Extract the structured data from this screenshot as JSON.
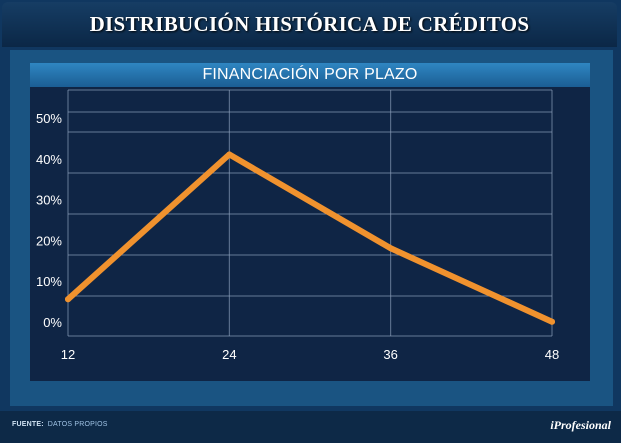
{
  "title": "DISTRIBUCIÓN HISTÓRICA DE CRÉDITOS",
  "chart_data": {
    "type": "line",
    "title": "FINANCIACIÓN POR PLAZO",
    "x": [
      12,
      24,
      36,
      48
    ],
    "x_tick_labels": [
      "12",
      "24",
      "36",
      "48"
    ],
    "y_tick_labels": [
      "0%",
      "10%",
      "20%",
      "30%",
      "40%",
      "50%"
    ],
    "ylim": [
      0,
      50
    ],
    "series": [
      {
        "values": [
          9,
          44.5,
          21.5,
          3.5
        ],
        "color": "#f0922e"
      }
    ],
    "grid": true
  },
  "footer": {
    "source_label": "FUENTE:",
    "source_value": "DATOS PROPIOS",
    "brand": "iProfesional"
  }
}
